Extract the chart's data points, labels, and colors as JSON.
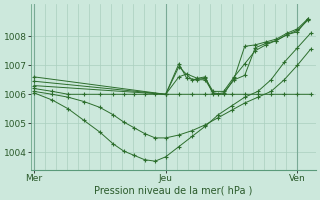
{
  "bg_color": "#cce8dc",
  "grid_color": "#aacfbf",
  "line_color": "#2d6e2d",
  "marker_color": "#2d6e2d",
  "xlabel": "Pression niveau de la mer( hPa )",
  "xtick_labels": [
    "Mer",
    "Jeu",
    "Ven"
  ],
  "xtick_positions": [
    0.0,
    0.5,
    1.0
  ],
  "ytick_labels": [
    "1004",
    "1005",
    "1006",
    "1007",
    "1008"
  ],
  "ytick_values": [
    1004,
    1005,
    1006,
    1007,
    1008
  ],
  "ylim": [
    1003.4,
    1009.1
  ],
  "xlim": [
    -0.01,
    1.07
  ],
  "vlines": [
    0.0,
    0.5,
    1.0
  ],
  "lines": [
    {
      "x": [
        0.0,
        0.07,
        0.13,
        0.19,
        0.25,
        0.3,
        0.34,
        0.38,
        0.42,
        0.46,
        0.5,
        0.55,
        0.6,
        0.65,
        0.7,
        0.75,
        0.8,
        0.85,
        0.9,
        0.95,
        1.0,
        1.05
      ],
      "y": [
        1006.05,
        1005.8,
        1005.5,
        1005.1,
        1004.7,
        1004.3,
        1004.05,
        1003.9,
        1003.75,
        1003.7,
        1003.85,
        1004.2,
        1004.55,
        1004.9,
        1005.3,
        1005.6,
        1005.9,
        1006.1,
        1006.5,
        1007.1,
        1007.6,
        1008.1
      ]
    },
    {
      "x": [
        0.0,
        0.07,
        0.13,
        0.19,
        0.25,
        0.3,
        0.34,
        0.38,
        0.42,
        0.46,
        0.5,
        0.55,
        0.6,
        0.65,
        0.7,
        0.75,
        0.8,
        0.85,
        0.9,
        0.95,
        1.0,
        1.05
      ],
      "y": [
        1006.1,
        1006.0,
        1005.9,
        1005.75,
        1005.55,
        1005.3,
        1005.05,
        1004.85,
        1004.65,
        1004.5,
        1004.5,
        1004.6,
        1004.75,
        1004.95,
        1005.2,
        1005.45,
        1005.7,
        1005.9,
        1006.1,
        1006.5,
        1007.0,
        1007.55
      ]
    },
    {
      "x": [
        0.0,
        0.07,
        0.13,
        0.19,
        0.25,
        0.3,
        0.34,
        0.38,
        0.42,
        0.46,
        0.5,
        0.55,
        0.6,
        0.65,
        0.7,
        0.75,
        0.8,
        0.85,
        0.9,
        0.95,
        1.0,
        1.05
      ],
      "y": [
        1006.2,
        1006.1,
        1006.0,
        1006.0,
        1006.0,
        1006.0,
        1006.0,
        1006.0,
        1006.0,
        1006.0,
        1006.0,
        1006.0,
        1006.0,
        1006.0,
        1006.0,
        1006.0,
        1006.0,
        1006.0,
        1006.0,
        1006.0,
        1006.0,
        1006.0
      ]
    },
    {
      "x": [
        0.0,
        0.5,
        0.55,
        0.6,
        0.65,
        0.68,
        0.72,
        0.76,
        0.8,
        0.84,
        0.88,
        0.92,
        0.96,
        1.0,
        1.04
      ],
      "y": [
        1006.3,
        1006.0,
        1006.95,
        1006.5,
        1006.55,
        1006.1,
        1006.1,
        1006.6,
        1007.05,
        1007.5,
        1007.7,
        1007.85,
        1008.05,
        1008.15,
        1008.6
      ]
    },
    {
      "x": [
        0.0,
        0.5,
        0.55,
        0.58,
        0.62,
        0.65,
        0.68,
        0.72,
        0.76,
        0.8,
        0.84,
        0.88,
        0.92,
        0.96,
        1.0,
        1.04
      ],
      "y": [
        1006.45,
        1006.0,
        1006.6,
        1006.7,
        1006.55,
        1006.6,
        1006.0,
        1006.05,
        1006.5,
        1006.65,
        1007.6,
        1007.75,
        1007.85,
        1008.05,
        1008.2,
        1008.55
      ]
    },
    {
      "x": [
        0.0,
        0.5,
        0.55,
        0.58,
        0.62,
        0.65,
        0.68,
        0.72,
        0.76,
        0.8,
        0.84,
        0.88,
        0.92,
        0.96,
        1.0,
        1.04
      ],
      "y": [
        1006.6,
        1006.0,
        1007.05,
        1006.55,
        1006.5,
        1006.5,
        1006.05,
        1006.0,
        1006.55,
        1007.65,
        1007.7,
        1007.8,
        1007.9,
        1008.1,
        1008.25,
        1008.6
      ]
    }
  ]
}
